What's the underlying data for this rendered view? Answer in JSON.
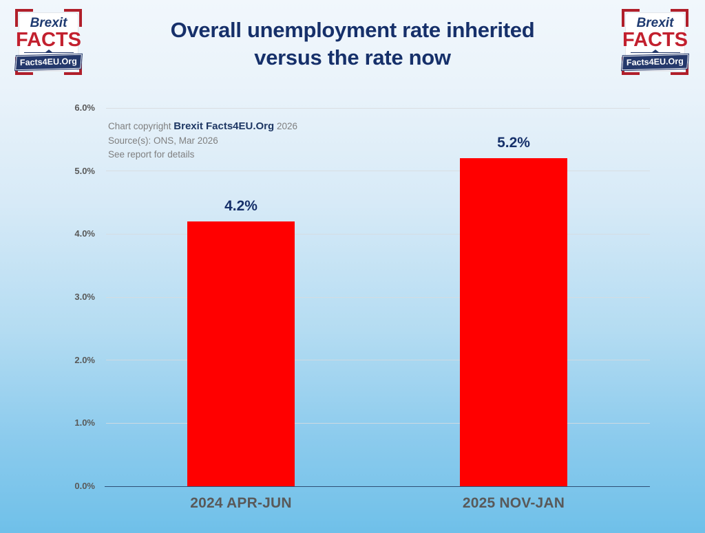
{
  "header": {
    "title_line1": "Overall unemployment rate inherited",
    "title_line2": "versus the rate now",
    "logo": {
      "line1": "Brexit",
      "line2": "FACTS",
      "banner": "Facts4EU.Org"
    }
  },
  "annotation": {
    "line1_prefix": "Chart copyright ",
    "line1_brand": "Brexit Facts4EU.Org",
    "line1_suffix": " 2026",
    "line2": "Source(s): ONS, Mar 2026",
    "line3": "See report for details"
  },
  "chart_data": {
    "type": "bar",
    "title": "Overall unemployment rate inherited versus the rate now",
    "categories": [
      "2024 APR-JUN",
      "2025 NOV-JAN"
    ],
    "values": [
      4.2,
      5.2
    ],
    "value_labels": [
      "4.2%",
      "5.2%"
    ],
    "xlabel": "",
    "ylabel": "",
    "ylim": [
      0,
      6
    ],
    "yticks": [
      "0.0%",
      "1.0%",
      "2.0%",
      "3.0%",
      "4.0%",
      "5.0%",
      "6.0%"
    ],
    "grid": true,
    "legend": false,
    "bar_color": "#ff0000",
    "value_label_color": "#16306a",
    "tick_color": "#595959",
    "axis_color": "#2f4e75"
  }
}
